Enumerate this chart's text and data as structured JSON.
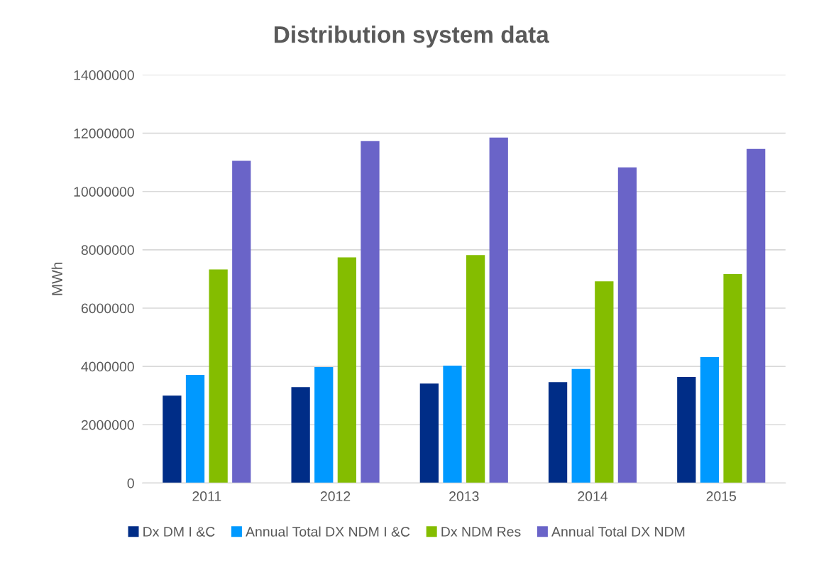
{
  "chart_data": {
    "type": "bar",
    "title": "Distribution system data",
    "ylabel": "MWh",
    "categories": [
      "2011",
      "2012",
      "2013",
      "2014",
      "2015"
    ],
    "series": [
      {
        "name": "Dx DM I &C",
        "color": "#002d87",
        "values": [
          3000000,
          3290000,
          3410000,
          3460000,
          3640000
        ]
      },
      {
        "name": "Annual Total DX NDM I &C",
        "color": "#0099ff",
        "values": [
          3710000,
          3980000,
          4030000,
          3910000,
          4320000
        ]
      },
      {
        "name": "Dx NDM Res",
        "color": "#84bd00",
        "values": [
          7330000,
          7740000,
          7820000,
          6920000,
          7170000
        ]
      },
      {
        "name": "Annual Total DX NDM",
        "color": "#6a64c8",
        "values": [
          11050000,
          11730000,
          11850000,
          10830000,
          11460000
        ]
      }
    ],
    "ylim": [
      0,
      14000000
    ],
    "yticks": [
      0,
      2000000,
      4000000,
      6000000,
      8000000,
      10000000,
      12000000,
      14000000
    ],
    "grid": "y",
    "legend": "bottom"
  }
}
